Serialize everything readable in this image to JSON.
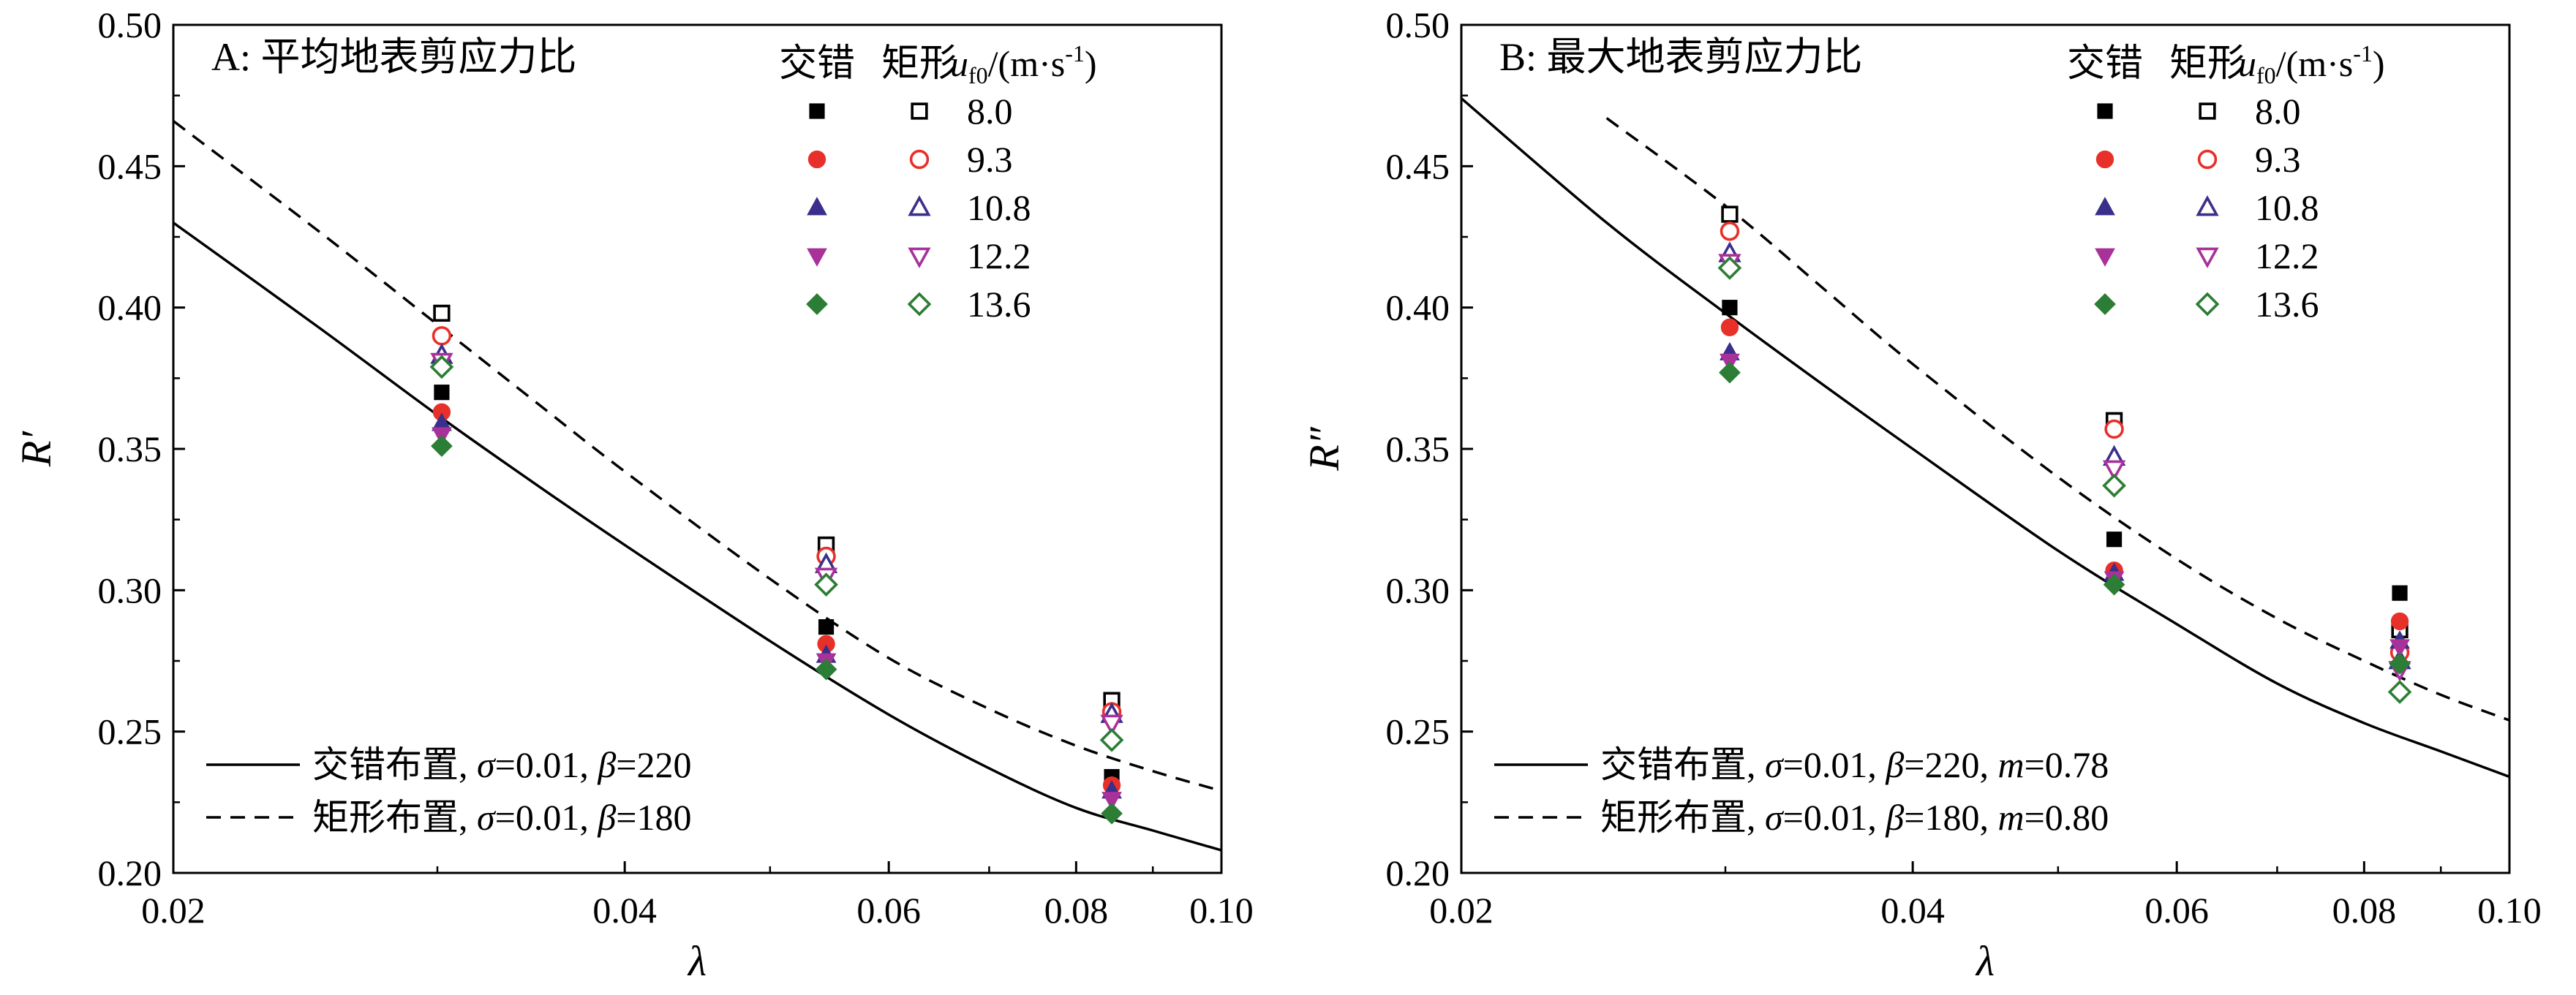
{
  "chart_data": [
    {
      "type": "scatter",
      "title": "A: 平均地表剪应力比",
      "xlabel": "λ",
      "ylabel": "R′",
      "xscale": "log",
      "xlim": [
        0.02,
        0.1
      ],
      "ylim": [
        0.2,
        0.5
      ],
      "xticks": [
        0.02,
        0.04,
        0.06,
        0.08,
        0.1
      ],
      "xtick_labels": [
        "0.02",
        "0.04",
        "0.06",
        "0.08",
        "0.10"
      ],
      "yticks": [
        0.2,
        0.25,
        0.3,
        0.35,
        0.4,
        0.45,
        0.5
      ],
      "ytick_labels": [
        "0.20",
        "0.25",
        "0.30",
        "0.35",
        "0.40",
        "0.45",
        "0.50"
      ],
      "legend_header": {
        "staggered": "交错",
        "rect": "矩形",
        "u_main": "u",
        "u_sub": "f0",
        "u_unit": "/(m·s",
        "u_sup": "-1",
        "u_close": ")"
      },
      "series": [
        {
          "name": "8.0",
          "color": "#000000",
          "marker": "square",
          "x": [
            0.0302,
            0.0545,
            0.0845
          ],
          "staggered": [
            0.37,
            0.287,
            0.234
          ],
          "rect": [
            0.398,
            0.316,
            0.261
          ]
        },
        {
          "name": "9.3",
          "color": "#e8302a",
          "marker": "circle",
          "x": [
            0.0302,
            0.0545,
            0.0845
          ],
          "staggered": [
            0.363,
            0.281,
            0.231
          ],
          "rect": [
            0.39,
            0.312,
            0.257
          ]
        },
        {
          "name": "10.8",
          "color": "#3a2f8a",
          "marker": "triangle-up",
          "x": [
            0.0302,
            0.0545,
            0.0845
          ],
          "staggered": [
            0.359,
            0.277,
            0.229
          ],
          "rect": [
            0.383,
            0.309,
            0.256
          ]
        },
        {
          "name": "12.2",
          "color": "#a8319a",
          "marker": "triangle-down",
          "x": [
            0.0302,
            0.0545,
            0.0845
          ],
          "staggered": [
            0.355,
            0.275,
            0.226
          ],
          "rect": [
            0.381,
            0.305,
            0.253
          ]
        },
        {
          "name": "13.6",
          "color": "#2c7d35",
          "marker": "diamond",
          "x": [
            0.0302,
            0.0545,
            0.0845
          ],
          "staggered": [
            0.351,
            0.272,
            0.221
          ],
          "rect": [
            0.379,
            0.302,
            0.247
          ]
        }
      ],
      "curves": [
        {
          "style": "solid",
          "label_cn": "交错布置",
          "params": [
            {
              "sym": "σ",
              "val": "=0.01"
            },
            {
              "sym": "β",
              "val": "=220"
            }
          ],
          "x": [
            0.02,
            0.025,
            0.03,
            0.035,
            0.04,
            0.05,
            0.06,
            0.07,
            0.08,
            0.09,
            0.1
          ],
          "y": [
            0.43,
            0.393,
            0.362,
            0.337,
            0.316,
            0.282,
            0.256,
            0.237,
            0.223,
            0.215,
            0.208
          ]
        },
        {
          "style": "dashed",
          "label_cn": "矩形布置",
          "params": [
            {
              "sym": "σ",
              "val": "=0.01"
            },
            {
              "sym": "β",
              "val": "=180"
            }
          ],
          "x": [
            0.02,
            0.025,
            0.03,
            0.035,
            0.04,
            0.05,
            0.06,
            0.07,
            0.08,
            0.09,
            0.1
          ],
          "y": [
            0.466,
            0.427,
            0.394,
            0.366,
            0.342,
            0.304,
            0.276,
            0.258,
            0.245,
            0.236,
            0.229
          ]
        }
      ]
    },
    {
      "type": "scatter",
      "title": "B: 最大地表剪应力比",
      "xlabel": "λ",
      "ylabel": "R″",
      "xscale": "log",
      "xlim": [
        0.02,
        0.1
      ],
      "ylim": [
        0.2,
        0.5
      ],
      "xticks": [
        0.02,
        0.04,
        0.06,
        0.08,
        0.1
      ],
      "xtick_labels": [
        "0.02",
        "0.04",
        "0.06",
        "0.08",
        "0.10"
      ],
      "yticks": [
        0.2,
        0.25,
        0.3,
        0.35,
        0.4,
        0.45,
        0.5
      ],
      "ytick_labels": [
        "0.20",
        "0.25",
        "0.30",
        "0.35",
        "0.40",
        "0.45",
        "0.50"
      ],
      "legend_header": {
        "staggered": "交错",
        "rect": "矩形",
        "u_main": "u",
        "u_sub": "f0",
        "u_unit": "/(m·s",
        "u_sup": "-1",
        "u_close": ")"
      },
      "series": [
        {
          "name": "8.0",
          "color": "#000000",
          "marker": "square",
          "x": [
            0.0302,
            0.0545,
            0.0845
          ],
          "staggered": [
            0.4,
            0.318,
            0.299
          ],
          "rect": [
            0.433,
            0.36,
            0.286
          ]
        },
        {
          "name": "9.3",
          "color": "#e8302a",
          "marker": "circle",
          "x": [
            0.0302,
            0.0545,
            0.0845
          ],
          "staggered": [
            0.393,
            0.307,
            0.289
          ],
          "rect": [
            0.427,
            0.357,
            0.278
          ]
        },
        {
          "name": "10.8",
          "color": "#3a2f8a",
          "marker": "triangle-up",
          "x": [
            0.0302,
            0.0545,
            0.0845
          ],
          "staggered": [
            0.384,
            0.306,
            0.282
          ],
          "rect": [
            0.419,
            0.347,
            0.275
          ]
        },
        {
          "name": "12.2",
          "color": "#a8319a",
          "marker": "triangle-down",
          "x": [
            0.0302,
            0.0545,
            0.0845
          ],
          "staggered": [
            0.381,
            0.304,
            0.28
          ],
          "rect": [
            0.416,
            0.343,
            0.272
          ]
        },
        {
          "name": "13.6",
          "color": "#2c7d35",
          "marker": "diamond",
          "x": [
            0.0302,
            0.0545,
            0.0845
          ],
          "staggered": [
            0.377,
            0.302,
            0.274
          ],
          "rect": [
            0.414,
            0.337,
            0.264
          ]
        }
      ],
      "curves": [
        {
          "style": "solid",
          "label_cn": "交错布置",
          "params": [
            {
              "sym": "σ",
              "val": "=0.01"
            },
            {
              "sym": "β",
              "val": "=220"
            },
            {
              "sym": "m",
              "val": "=0.78"
            }
          ],
          "x": [
            0.02,
            0.025,
            0.03,
            0.035,
            0.04,
            0.05,
            0.06,
            0.07,
            0.08,
            0.09,
            0.1
          ],
          "y": [
            0.474,
            0.43,
            0.398,
            0.372,
            0.35,
            0.314,
            0.288,
            0.267,
            0.253,
            0.243,
            0.234
          ]
        },
        {
          "style": "dashed",
          "label_cn": "矩形布置",
          "params": [
            {
              "sym": "σ",
              "val": "=0.01"
            },
            {
              "sym": "β",
              "val": "=180"
            },
            {
              "sym": "m",
              "val": "=0.80"
            }
          ],
          "x": [
            0.025,
            0.03,
            0.035,
            0.04,
            0.05,
            0.06,
            0.07,
            0.08,
            0.09,
            0.1
          ],
          "y": [
            0.467,
            0.436,
            0.406,
            0.38,
            0.34,
            0.311,
            0.29,
            0.275,
            0.263,
            0.254
          ]
        }
      ]
    }
  ]
}
